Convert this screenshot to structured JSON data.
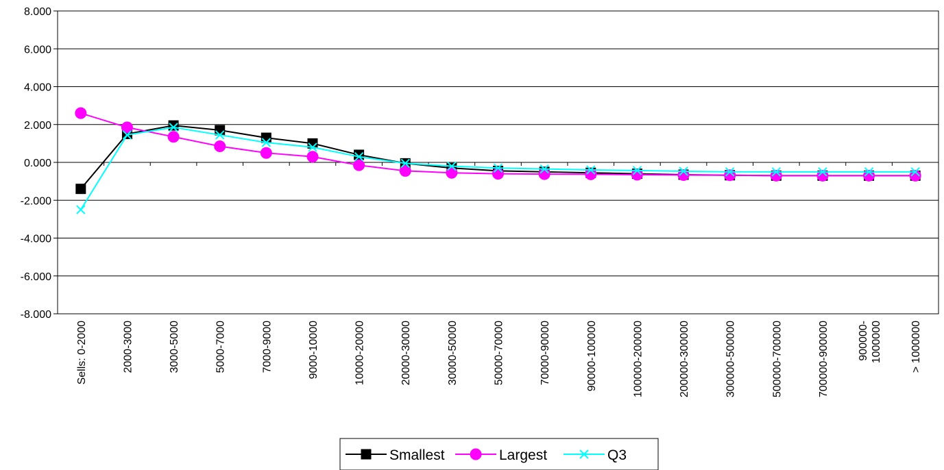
{
  "chart_data": {
    "type": "line",
    "title": "",
    "xlabel": "",
    "ylabel": "",
    "ylim": [
      -8,
      8
    ],
    "yticks": [
      "8.000",
      "6.000",
      "4.000",
      "2.000",
      "0.000",
      "-2.000",
      "-4.000",
      "-6.000",
      "-8.000"
    ],
    "ytick_values": [
      8,
      6,
      4,
      2,
      0,
      -2,
      -4,
      -6,
      -8
    ],
    "grid": "horizontal",
    "legend_position": "bottom",
    "categories": [
      "Sells:  0-2000",
      "2000-3000",
      "3000-5000",
      "5000-7000",
      "7000-9000",
      "9000-10000",
      "10000-20000",
      "20000-30000",
      "30000-50000",
      "50000-70000",
      "70000-90000",
      "90000-100000",
      "100000-200000",
      "200000-300000",
      "300000-500000",
      "500000-700000",
      "700000-900000",
      "900000-\n1000000",
      "> 1000000"
    ],
    "series": [
      {
        "name": "Smallest",
        "color": "#000000",
        "marker": "square",
        "values": [
          -1.4,
          1.5,
          1.95,
          1.7,
          1.3,
          1.0,
          0.4,
          -0.05,
          -0.3,
          -0.45,
          -0.5,
          -0.55,
          -0.6,
          -0.65,
          -0.68,
          -0.7,
          -0.7,
          -0.7,
          -0.7
        ]
      },
      {
        "name": "Largest",
        "color": "#ff00ff",
        "marker": "circle",
        "values": [
          2.6,
          1.85,
          1.35,
          0.85,
          0.5,
          0.3,
          -0.15,
          -0.45,
          -0.55,
          -0.6,
          -0.62,
          -0.63,
          -0.65,
          -0.67,
          -0.68,
          -0.7,
          -0.7,
          -0.7,
          -0.7
        ]
      },
      {
        "name": "Q3",
        "color": "#00ffff",
        "marker": "x",
        "values": [
          -2.5,
          1.45,
          1.85,
          1.45,
          1.05,
          0.8,
          0.3,
          -0.05,
          -0.2,
          -0.3,
          -0.35,
          -0.4,
          -0.43,
          -0.47,
          -0.5,
          -0.5,
          -0.5,
          -0.5,
          -0.5
        ]
      }
    ]
  }
}
